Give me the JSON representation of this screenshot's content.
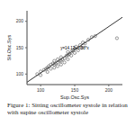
{
  "chart_data": {
    "type": "scatter",
    "caption": "Figure 1: Sitting oscillometer systole in relation with supine oscillometer systole",
    "x_label": "Sup.Osc.Sys",
    "y_label": "Sit.Osc.Sys",
    "annotation": "y=14.13+0.88*x",
    "x": [
      95,
      100,
      100,
      105,
      108,
      110,
      110,
      112,
      115,
      115,
      118,
      120,
      120,
      120,
      122,
      125,
      125,
      125,
      128,
      130,
      130,
      130,
      132,
      135,
      135,
      138,
      140,
      140,
      140,
      142,
      145,
      145,
      148,
      150,
      150,
      152,
      155,
      158,
      160,
      162,
      165,
      170,
      175,
      180,
      212
    ],
    "values": [
      100,
      98,
      105,
      108,
      110,
      104,
      112,
      115,
      110,
      118,
      120,
      112,
      118,
      125,
      120,
      115,
      122,
      128,
      125,
      118,
      125,
      132,
      128,
      130,
      122,
      135,
      128,
      136,
      142,
      138,
      135,
      142,
      145,
      140,
      148,
      152,
      145,
      155,
      150,
      160,
      158,
      165,
      170,
      172,
      168
    ],
    "fit_line": {
      "x": [
        80,
        220
      ],
      "values": [
        84.5,
        207.7
      ]
    },
    "color": "#555555",
    "marker": "circle",
    "xlim": [
      80,
      220
    ],
    "ylim": [
      80,
      220
    ],
    "xticks": [
      100,
      150,
      200
    ],
    "yticks": [
      100,
      150,
      200
    ],
    "grid": false
  }
}
